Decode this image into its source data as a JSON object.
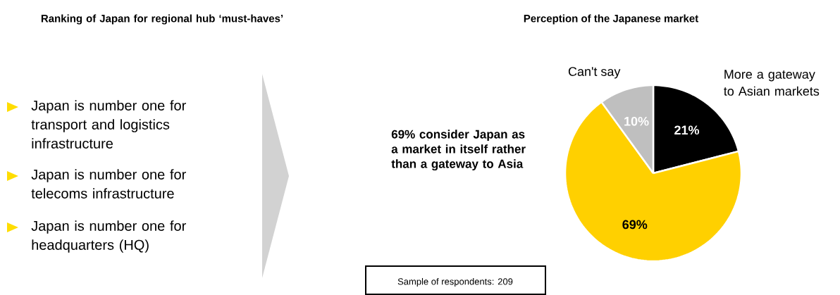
{
  "chart_data": [
    {
      "type": "other",
      "title": "Ranking of Japan for regional hub ‘must-haves’",
      "annotations": [
        "Japan is number one for transport and logistics infrastructure",
        "Japan is number one for telecoms infrastructure",
        "Japan is number one for headquarters (HQ)"
      ]
    },
    {
      "type": "pie",
      "title": "Perception of the Japanese market",
      "categories": [
        "More a gateway to Asian markets",
        null,
        "Can't say"
      ],
      "values": [
        21,
        69,
        10
      ],
      "colors": [
        "#000000",
        "#ffd000",
        "#bfbfbf"
      ],
      "value_labels": [
        "21%",
        "69%",
        "10%"
      ],
      "annotations": [
        "69% consider Japan as a market in itself rather than a gateway to Asia",
        "Sample of respondents: 209"
      ]
    }
  ]
}
